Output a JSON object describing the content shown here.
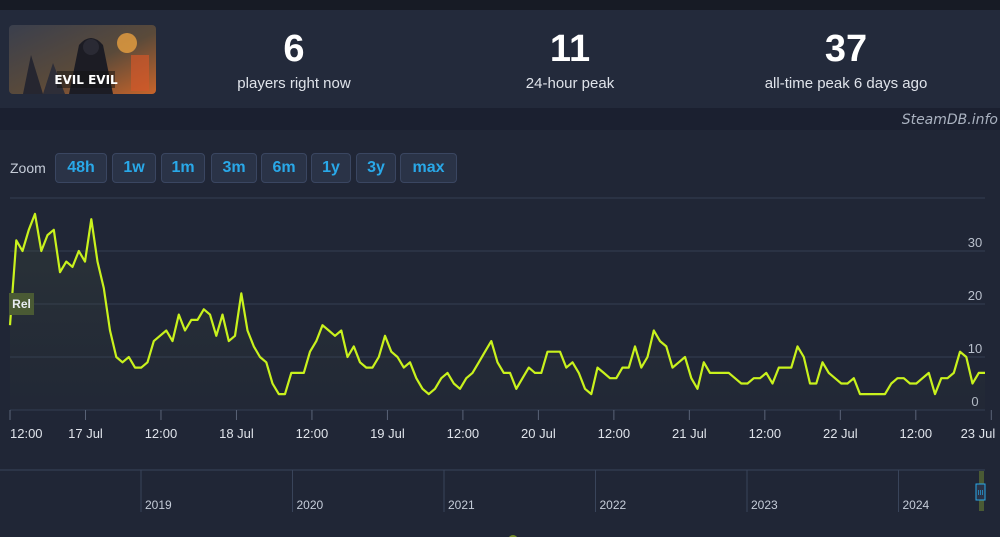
{
  "stats": [
    {
      "value": "6",
      "label": "players right now"
    },
    {
      "value": "11",
      "label": "24-hour peak"
    },
    {
      "value": "37",
      "label": "all-time peak 6 days ago"
    }
  ],
  "game_logo_text": "EVIL EVIL",
  "credit": "SteamDB.info",
  "zoom": {
    "label": "Zoom",
    "buttons": [
      "48h",
      "1w",
      "1m",
      "3m",
      "6m",
      "1y",
      "3y",
      "max"
    ]
  },
  "release_marker": "Rel",
  "navigator": {
    "years": [
      "2019",
      "2020",
      "2021",
      "2022",
      "2023",
      "2024"
    ],
    "handle_label": "III"
  },
  "colors": {
    "line": "#c9f21d",
    "accent": "#29a8e8",
    "background": "#202636"
  },
  "chart_data": {
    "type": "area",
    "title": "",
    "xlabel": "",
    "ylabel": "",
    "ylim": [
      0,
      40
    ],
    "y_ticks": [
      0,
      10,
      20,
      30
    ],
    "x_ticks": [
      "12:00",
      "17 Jul",
      "12:00",
      "18 Jul",
      "12:00",
      "19 Jul",
      "12:00",
      "20 Jul",
      "12:00",
      "21 Jul",
      "12:00",
      "22 Jul",
      "12:00",
      "23 Jul"
    ],
    "x_range_hours": [
      0,
      155
    ],
    "grid": true,
    "series": [
      {
        "values": [
          16,
          32,
          30,
          34,
          37,
          30,
          33,
          34,
          26,
          28,
          27,
          30,
          28,
          36,
          28,
          23,
          15,
          10,
          9,
          10,
          8,
          8,
          9,
          13,
          14,
          15,
          13,
          18,
          15,
          17,
          17,
          19,
          18,
          14,
          18,
          13,
          14,
          22,
          15,
          12,
          10,
          9,
          5,
          3,
          3,
          7,
          7,
          7,
          11,
          13,
          16,
          15,
          14,
          15,
          10,
          12,
          9,
          8,
          8,
          10,
          14,
          11,
          10,
          8,
          9,
          6,
          4,
          3,
          4,
          6,
          7,
          5,
          4,
          6,
          7,
          9,
          11,
          13,
          9,
          7,
          7,
          4,
          6,
          8,
          7,
          7,
          11,
          11,
          11,
          8,
          9,
          7,
          4,
          3,
          8,
          7,
          6,
          6,
          8,
          8,
          12,
          8,
          10,
          15,
          13,
          12,
          8,
          9,
          10,
          6,
          4,
          9,
          7,
          7,
          7,
          7,
          6,
          5,
          5,
          6,
          6,
          7,
          5,
          8,
          8,
          8,
          12,
          10,
          5,
          5,
          9,
          7,
          6,
          5,
          5,
          6,
          3,
          3,
          3,
          3,
          3,
          5,
          6,
          6,
          5,
          5,
          6,
          7,
          3,
          6,
          6,
          7,
          11,
          10,
          5,
          7,
          7
        ]
      }
    ]
  }
}
